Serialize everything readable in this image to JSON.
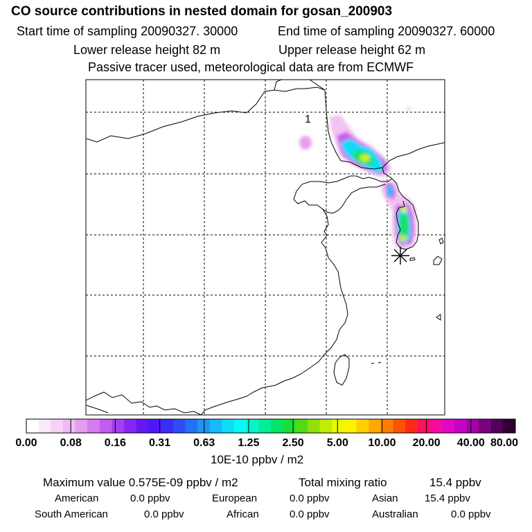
{
  "header": {
    "title": "CO  source contributions in nested domain for gosan_200903",
    "start_time": "Start time of sampling 20090327. 30000",
    "end_time": "End time of sampling 20090327. 60000",
    "lower_release": "Lower release height   82 m",
    "upper_release": "Upper release height   62 m",
    "note": "Passive tracer used, meteorological data are from ECMWF"
  },
  "chart_data": {
    "type": "heatmap",
    "title": "CO  source contributions in nested domain for gosan_200903",
    "plume_label": "1",
    "grid": true,
    "colorbar": {
      "tick_labels": [
        "0.00",
        "0.08",
        "0.16",
        "0.31",
        "0.63",
        "1.25",
        "2.50",
        "5.00",
        "10.00",
        "20.00",
        "40.00",
        "80.00"
      ],
      "units": "10E-10 ppbv / m2",
      "colors": [
        "#ffffff",
        "#fbe8fb",
        "#f6d2f6",
        "#efbcf2",
        "#e49cf0",
        "#d47bf1",
        "#c25cf3",
        "#a43df5",
        "#8427f5",
        "#6418f4",
        "#4d18f5",
        "#3a2ef5",
        "#2d4cf6",
        "#2470f6",
        "#1c95f8",
        "#16b9f9",
        "#0fdcfa",
        "#08f8f6",
        "#08f3c9",
        "#05ec98",
        "#04e467",
        "#18de37",
        "#50dc13",
        "#8fe108",
        "#c1ec05",
        "#e9f805",
        "#fff100",
        "#ffcf00",
        "#ffa600",
        "#ff7c00",
        "#ff5200",
        "#ff2a16",
        "#ff1060",
        "#f80aa0",
        "#e306c3",
        "#c403c6",
        "#a202a7",
        "#7a027f",
        "#520156",
        "#2c0030"
      ]
    }
  },
  "stats": {
    "max_label": "Maximum value  0.575E-09 ppbv / m2",
    "total_label": "Total mixing ratio",
    "total_value": "15.4 ppbv",
    "rows": [
      [
        {
          "name": "American",
          "value": "0.0 ppbv"
        },
        {
          "name": "European",
          "value": "0.0 ppbv"
        },
        {
          "name": "Asian",
          "value": "15.4 ppbv"
        }
      ],
      [
        {
          "name": "South American",
          "value": "0.0 ppbv"
        },
        {
          "name": "African",
          "value": "0.0 ppbv"
        },
        {
          "name": "Australian",
          "value": "0.0 ppbv"
        }
      ]
    ]
  }
}
